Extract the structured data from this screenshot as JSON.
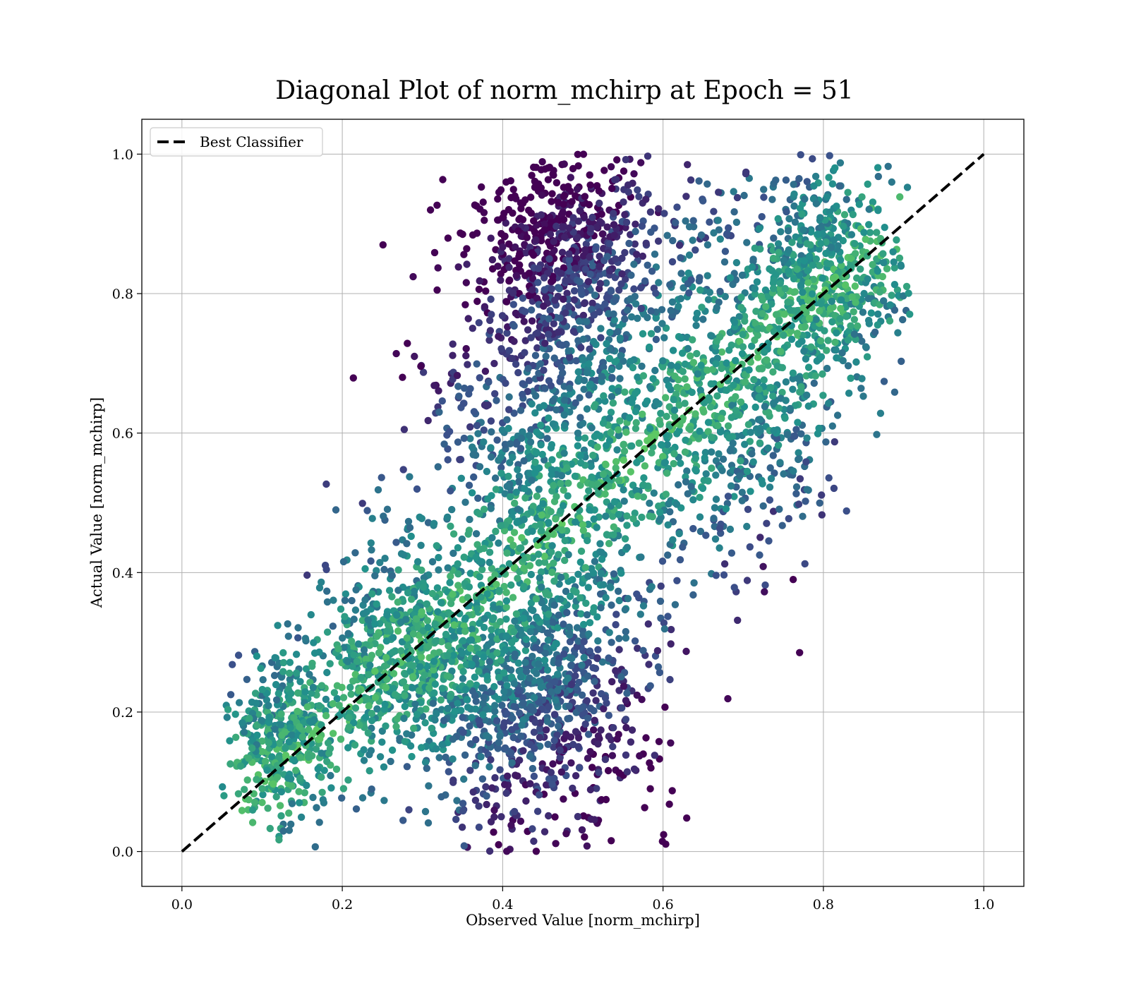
{
  "chart_data": {
    "type": "scatter",
    "title": "Diagonal Plot of norm_mchirp at Epoch = 51",
    "xlabel": "Observed Value [norm_mchirp]",
    "ylabel": "Actual Value [norm_mchirp]",
    "xlim": [
      -0.05,
      1.05
    ],
    "ylim": [
      -0.05,
      1.05
    ],
    "xticks": [
      "0.0",
      "0.2",
      "0.4",
      "0.6",
      "0.8",
      "1.0"
    ],
    "yticks": [
      "0.0",
      "0.2",
      "0.4",
      "0.6",
      "0.8",
      "1.0"
    ],
    "grid": true,
    "colormap": "viridis",
    "point_count_approx": 25000,
    "legend": {
      "placement": "top-left",
      "entries": [
        {
          "label": "Best Classifier",
          "style": "dashed",
          "color": "#000000"
        }
      ]
    },
    "reference_line": {
      "label": "Best Classifier",
      "x": [
        0.0,
        1.0
      ],
      "y": [
        0.0,
        1.0
      ]
    },
    "clusters": [
      {
        "observed_mean": 0.13,
        "actual_mean": 0.16,
        "observed_sd": 0.035,
        "actual_sd": 0.06,
        "share": 0.08
      },
      {
        "observed_mean": 0.28,
        "actual_mean": 0.28,
        "observed_sd": 0.06,
        "actual_sd": 0.08,
        "share": 0.14
      },
      {
        "observed_mean": 0.44,
        "actual_mean": 0.22,
        "observed_sd": 0.07,
        "actual_sd": 0.1,
        "share": 0.18
      },
      {
        "observed_mean": 0.47,
        "actual_mean": 0.55,
        "observed_sd": 0.08,
        "actual_sd": 0.14,
        "share": 0.2
      },
      {
        "observed_mean": 0.48,
        "actual_mean": 0.86,
        "observed_sd": 0.06,
        "actual_sd": 0.08,
        "share": 0.14
      },
      {
        "observed_mean": 0.68,
        "actual_mean": 0.66,
        "observed_sd": 0.07,
        "actual_sd": 0.12,
        "share": 0.14
      },
      {
        "observed_mean": 0.8,
        "actual_mean": 0.82,
        "observed_sd": 0.05,
        "actual_sd": 0.08,
        "share": 0.12
      }
    ],
    "colors": {
      "dark": "#440154",
      "mid_dark": "#3b528b",
      "mid": "#21918c",
      "bright": "#5ec962",
      "light": "#fde725",
      "grid": "#b0b0b0",
      "line": "#000000"
    }
  }
}
